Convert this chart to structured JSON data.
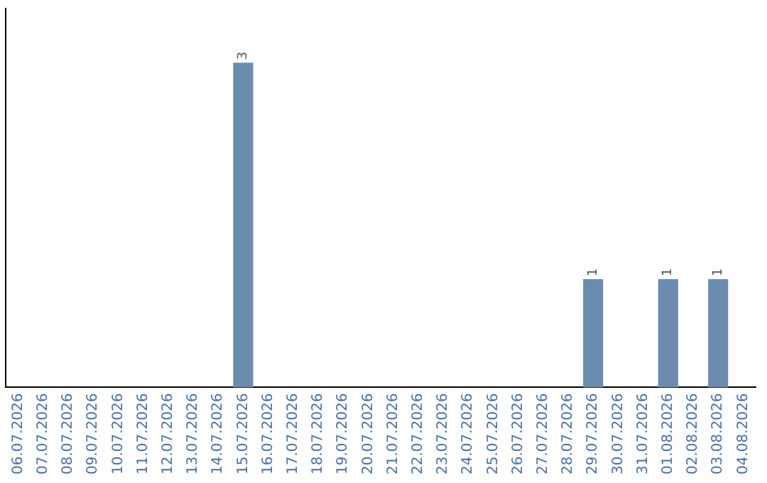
{
  "chart_data": {
    "type": "bar",
    "categories": [
      "06.07.2026",
      "07.07.2026",
      "08.07.2026",
      "09.07.2026",
      "10.07.2026",
      "11.07.2026",
      "12.07.2026",
      "13.07.2026",
      "14.07.2026",
      "15.07.2026",
      "16.07.2026",
      "17.07.2026",
      "18.07.2026",
      "19.07.2026",
      "20.07.2026",
      "21.07.2026",
      "22.07.2026",
      "23.07.2026",
      "24.07.2026",
      "25.07.2026",
      "26.07.2026",
      "27.07.2026",
      "28.07.2026",
      "29.07.2026",
      "30.07.2026",
      "31.07.2026",
      "01.08.2026",
      "02.08.2026",
      "03.08.2026",
      "04.08.2026"
    ],
    "values": [
      0,
      0,
      0,
      0,
      0,
      0,
      0,
      0,
      0,
      3,
      0,
      0,
      0,
      0,
      0,
      0,
      0,
      0,
      0,
      0,
      0,
      0,
      0,
      1,
      0,
      0,
      1,
      0,
      1,
      0
    ],
    "value_labels": [
      null,
      null,
      null,
      null,
      null,
      null,
      null,
      null,
      null,
      "3",
      null,
      null,
      null,
      null,
      null,
      null,
      null,
      null,
      null,
      null,
      null,
      null,
      null,
      "1",
      null,
      null,
      "1",
      null,
      "1",
      null
    ],
    "color": "#6b8cae",
    "tick_labels": "x",
    "grid": false,
    "legend": false
  }
}
